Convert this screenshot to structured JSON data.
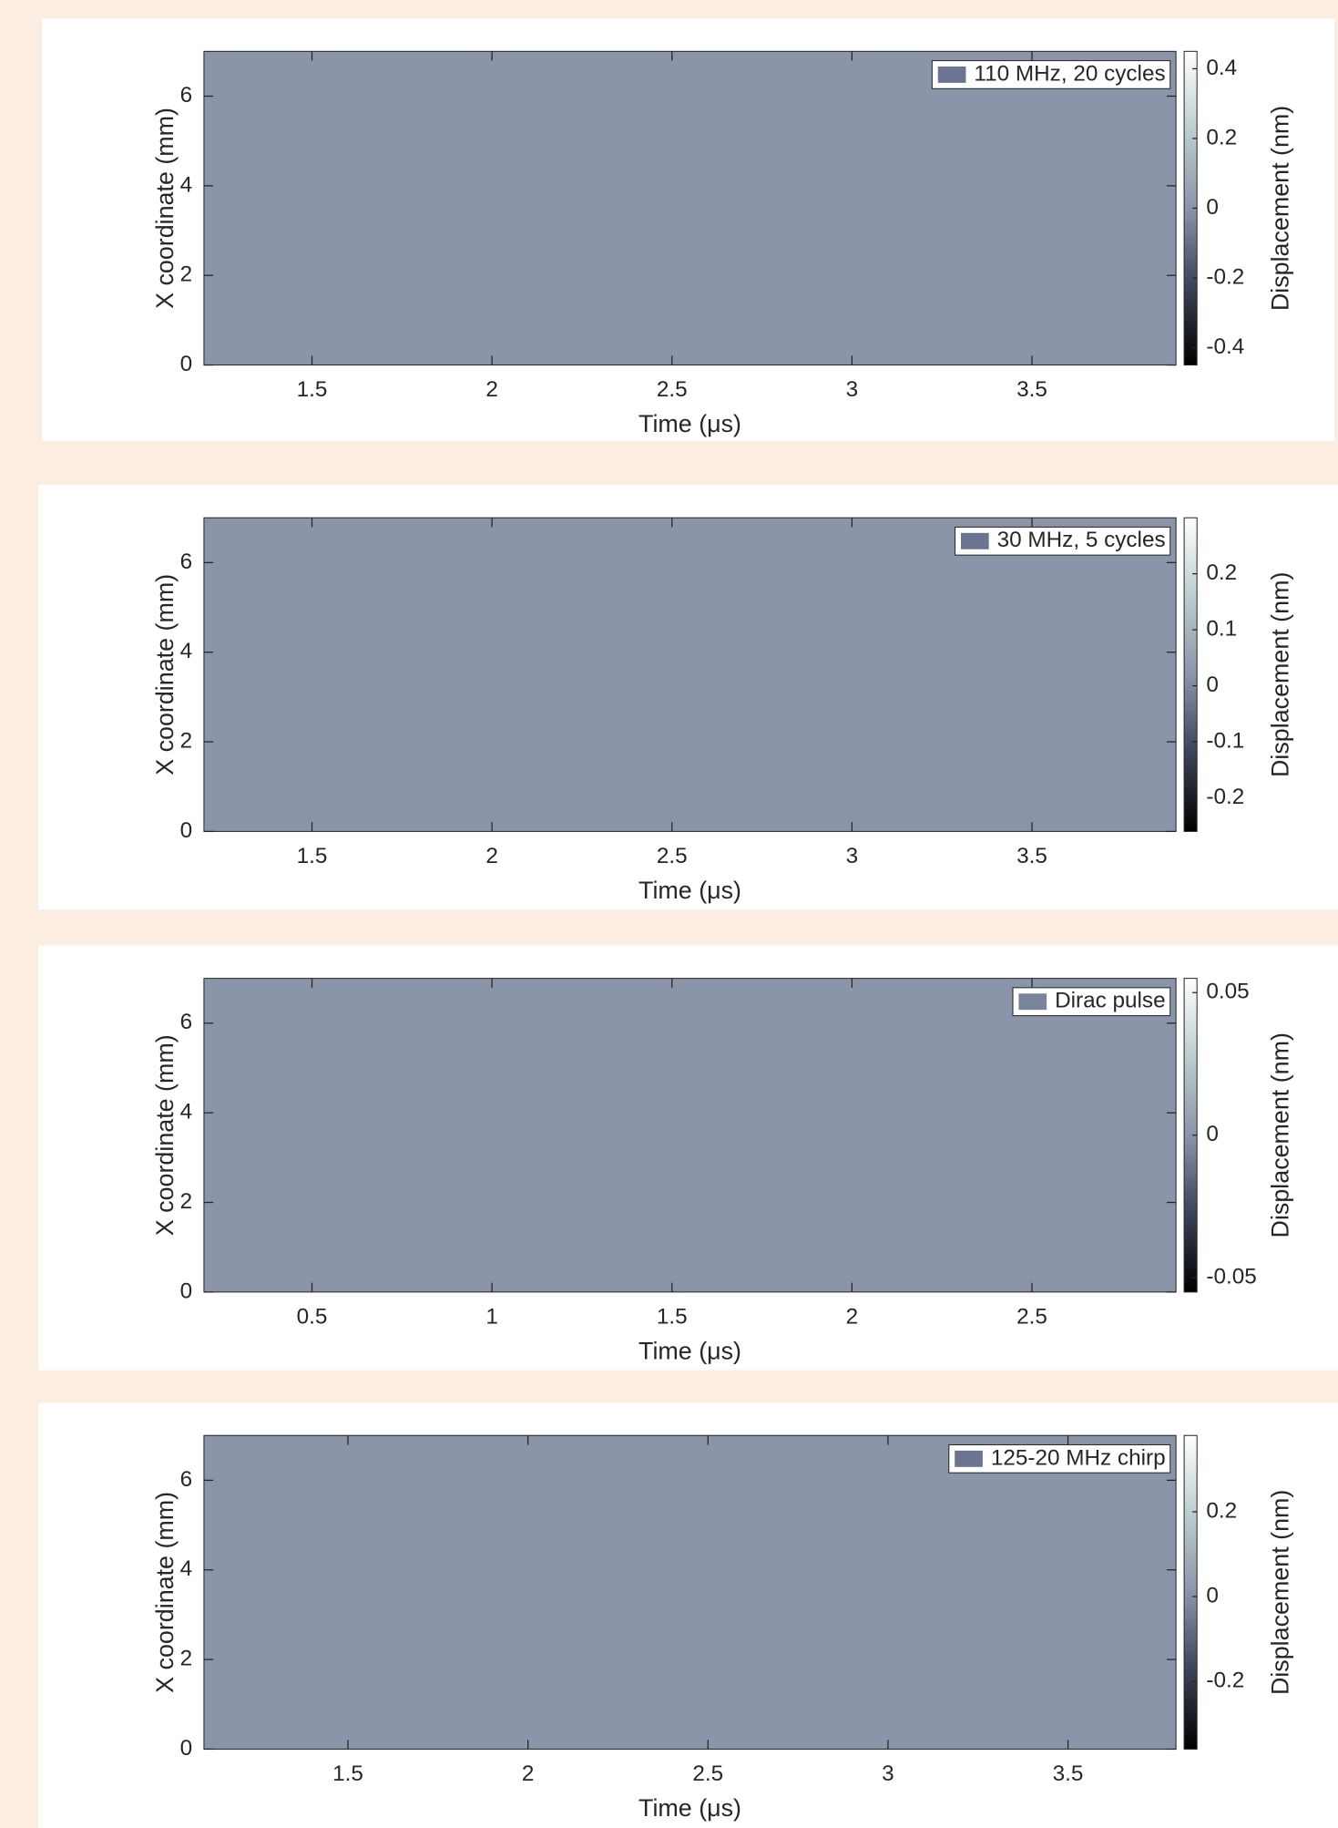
{
  "chart_data": [
    {
      "type": "heatmap",
      "xlabel": "Time (μs)",
      "ylabel": "X coordinate (mm)",
      "colorbar_label": "Displacement (nm)",
      "legend": "110 MHz, 20 cycles",
      "legend_loc": "northeast",
      "legend_color": "#6b7591",
      "xlim": [
        1.2,
        3.9
      ],
      "xticks": [
        1.5,
        2,
        2.5,
        3,
        3.5
      ],
      "ylim": [
        0,
        7
      ],
      "yticks": [
        0,
        2,
        4,
        6
      ],
      "clim": [
        -0.45,
        0.45
      ],
      "cticks": [
        -0.4,
        -0.2,
        0,
        0.2,
        0.4
      ],
      "grid": false
    },
    {
      "type": "heatmap",
      "xlabel": "Time (μs)",
      "ylabel": "X coordinate (mm)",
      "colorbar_label": "Displacement (nm)",
      "legend": "30 MHz, 5 cycles",
      "legend_loc": "northeast",
      "legend_color": "#6b7591",
      "xlim": [
        1.2,
        3.9
      ],
      "xticks": [
        1.5,
        2,
        2.5,
        3,
        3.5
      ],
      "ylim": [
        0,
        7
      ],
      "yticks": [
        0,
        2,
        4,
        6
      ],
      "clim": [
        -0.26,
        0.3
      ],
      "cticks": [
        -0.2,
        -0.1,
        0,
        0.1,
        0.2
      ],
      "grid": false
    },
    {
      "type": "heatmap",
      "xlabel": "Time (μs)",
      "ylabel": "X coordinate (mm)",
      "colorbar_label": "Displacement (nm)",
      "legend": "Dirac pulse",
      "legend_loc": "northeast",
      "legend_color": "#7a849c",
      "xlim": [
        0.2,
        2.9
      ],
      "xticks": [
        0.5,
        1,
        1.5,
        2,
        2.5
      ],
      "ylim": [
        0,
        7
      ],
      "yticks": [
        0,
        2,
        4,
        6
      ],
      "clim": [
        -0.055,
        0.055
      ],
      "cticks": [
        -0.05,
        0,
        0.05
      ],
      "grid": false
    },
    {
      "type": "heatmap",
      "xlabel": "Time (μs)",
      "ylabel": "X coordinate (mm)",
      "colorbar_label": "Displacement (nm)",
      "legend": "125-20 MHz chirp",
      "legend_loc": "northeast",
      "legend_color": "#6b7591",
      "xlim": [
        1.1,
        3.8
      ],
      "xticks": [
        1.5,
        2,
        2.5,
        3,
        3.5
      ],
      "ylim": [
        0,
        7
      ],
      "yticks": [
        0,
        2,
        4,
        6
      ],
      "clim": [
        -0.36,
        0.38
      ],
      "cticks": [
        -0.2,
        0,
        0.2
      ],
      "grid": false
    }
  ]
}
